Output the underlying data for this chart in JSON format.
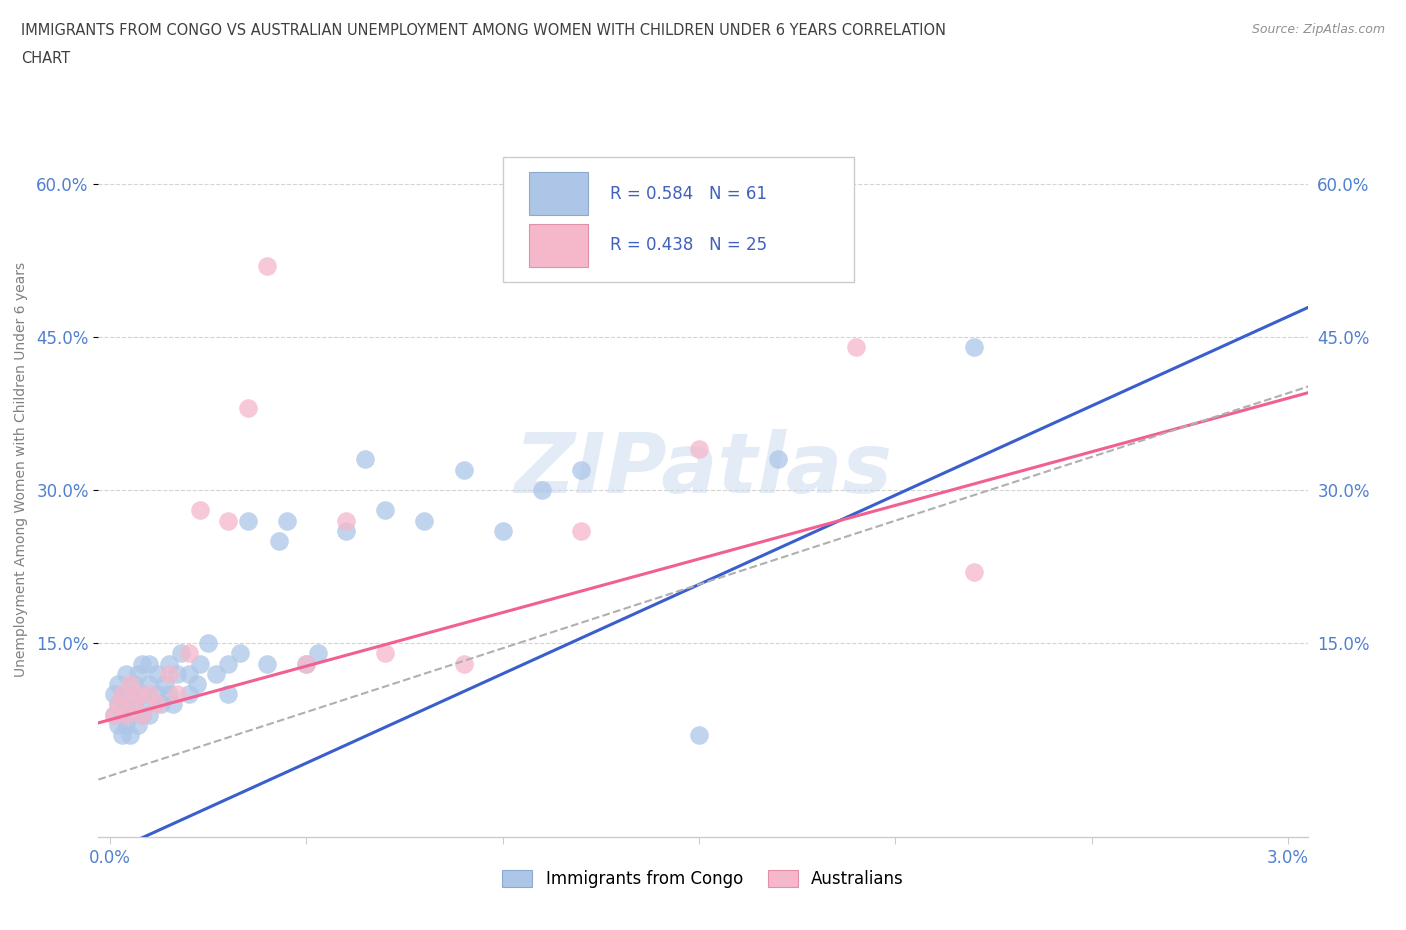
{
  "title_line1": "IMMIGRANTS FROM CONGO VS AUSTRALIAN UNEMPLOYMENT AMONG WOMEN WITH CHILDREN UNDER 6 YEARS CORRELATION",
  "title_line2": "CHART",
  "source": "Source: ZipAtlas.com",
  "ylabel": "Unemployment Among Women with Children Under 6 years",
  "xlim": [
    -0.0003,
    0.0305
  ],
  "ylim": [
    -0.04,
    0.68
  ],
  "xtick_positions": [
    0.0,
    0.005,
    0.01,
    0.015,
    0.02,
    0.025,
    0.03
  ],
  "xtick_labels": [
    "0.0%",
    "",
    "",
    "",
    "",
    "",
    "3.0%"
  ],
  "ytick_positions": [
    0.15,
    0.3,
    0.45,
    0.6
  ],
  "ytick_labels": [
    "15.0%",
    "30.0%",
    "45.0%",
    "60.0%"
  ],
  "R_congo": 0.584,
  "N_congo": 61,
  "R_aus": 0.438,
  "N_aus": 25,
  "congo_color": "#adc6e8",
  "aus_color": "#f5b8cb",
  "congo_line_color": "#3a5fcd",
  "aus_line_color": "#f06090",
  "dashed_line_color": "#b0b0b0",
  "background_color": "#ffffff",
  "grid_color": "#d0d0d0",
  "title_color": "#404040",
  "axis_label_color": "#808080",
  "tick_color": "#5080d0",
  "legend_text_color": "#4060c0",
  "watermark_text": "ZIPatlas",
  "congo_intercept": -0.055,
  "congo_slope": 17.5,
  "aus_intercept": 0.075,
  "aus_slope": 10.5,
  "dashed_intercept": 0.02,
  "dashed_slope": 12.5,
  "congo_points_x": [
    0.0001,
    0.0001,
    0.0002,
    0.0002,
    0.0002,
    0.0003,
    0.0003,
    0.0003,
    0.0004,
    0.0004,
    0.0004,
    0.0005,
    0.0005,
    0.0005,
    0.0006,
    0.0006,
    0.0007,
    0.0007,
    0.0007,
    0.0008,
    0.0008,
    0.0008,
    0.0009,
    0.001,
    0.001,
    0.001,
    0.0012,
    0.0012,
    0.0013,
    0.0014,
    0.0015,
    0.0015,
    0.0016,
    0.0017,
    0.0018,
    0.002,
    0.002,
    0.0022,
    0.0023,
    0.0025,
    0.0027,
    0.003,
    0.003,
    0.0033,
    0.0035,
    0.004,
    0.0043,
    0.0045,
    0.005,
    0.0053,
    0.006,
    0.0065,
    0.007,
    0.008,
    0.009,
    0.01,
    0.011,
    0.012,
    0.015,
    0.017,
    0.022
  ],
  "congo_points_y": [
    0.08,
    0.1,
    0.07,
    0.09,
    0.11,
    0.06,
    0.08,
    0.1,
    0.07,
    0.09,
    0.12,
    0.08,
    0.1,
    0.06,
    0.09,
    0.11,
    0.07,
    0.1,
    0.12,
    0.08,
    0.1,
    0.13,
    0.09,
    0.08,
    0.11,
    0.13,
    0.1,
    0.12,
    0.09,
    0.11,
    0.1,
    0.13,
    0.09,
    0.12,
    0.14,
    0.1,
    0.12,
    0.11,
    0.13,
    0.15,
    0.12,
    0.1,
    0.13,
    0.14,
    0.27,
    0.13,
    0.25,
    0.27,
    0.13,
    0.14,
    0.26,
    0.33,
    0.28,
    0.27,
    0.32,
    0.26,
    0.3,
    0.32,
    0.06,
    0.33,
    0.44
  ],
  "aus_points_x": [
    0.0001,
    0.0002,
    0.0003,
    0.0004,
    0.0005,
    0.0006,
    0.0007,
    0.0008,
    0.001,
    0.0012,
    0.0015,
    0.0017,
    0.002,
    0.0023,
    0.003,
    0.0035,
    0.004,
    0.005,
    0.006,
    0.007,
    0.009,
    0.012,
    0.015,
    0.019,
    0.022
  ],
  "aus_points_y": [
    0.08,
    0.09,
    0.1,
    0.08,
    0.11,
    0.09,
    0.1,
    0.08,
    0.1,
    0.09,
    0.12,
    0.1,
    0.14,
    0.28,
    0.27,
    0.38,
    0.52,
    0.13,
    0.27,
    0.14,
    0.13,
    0.26,
    0.34,
    0.44,
    0.22
  ]
}
